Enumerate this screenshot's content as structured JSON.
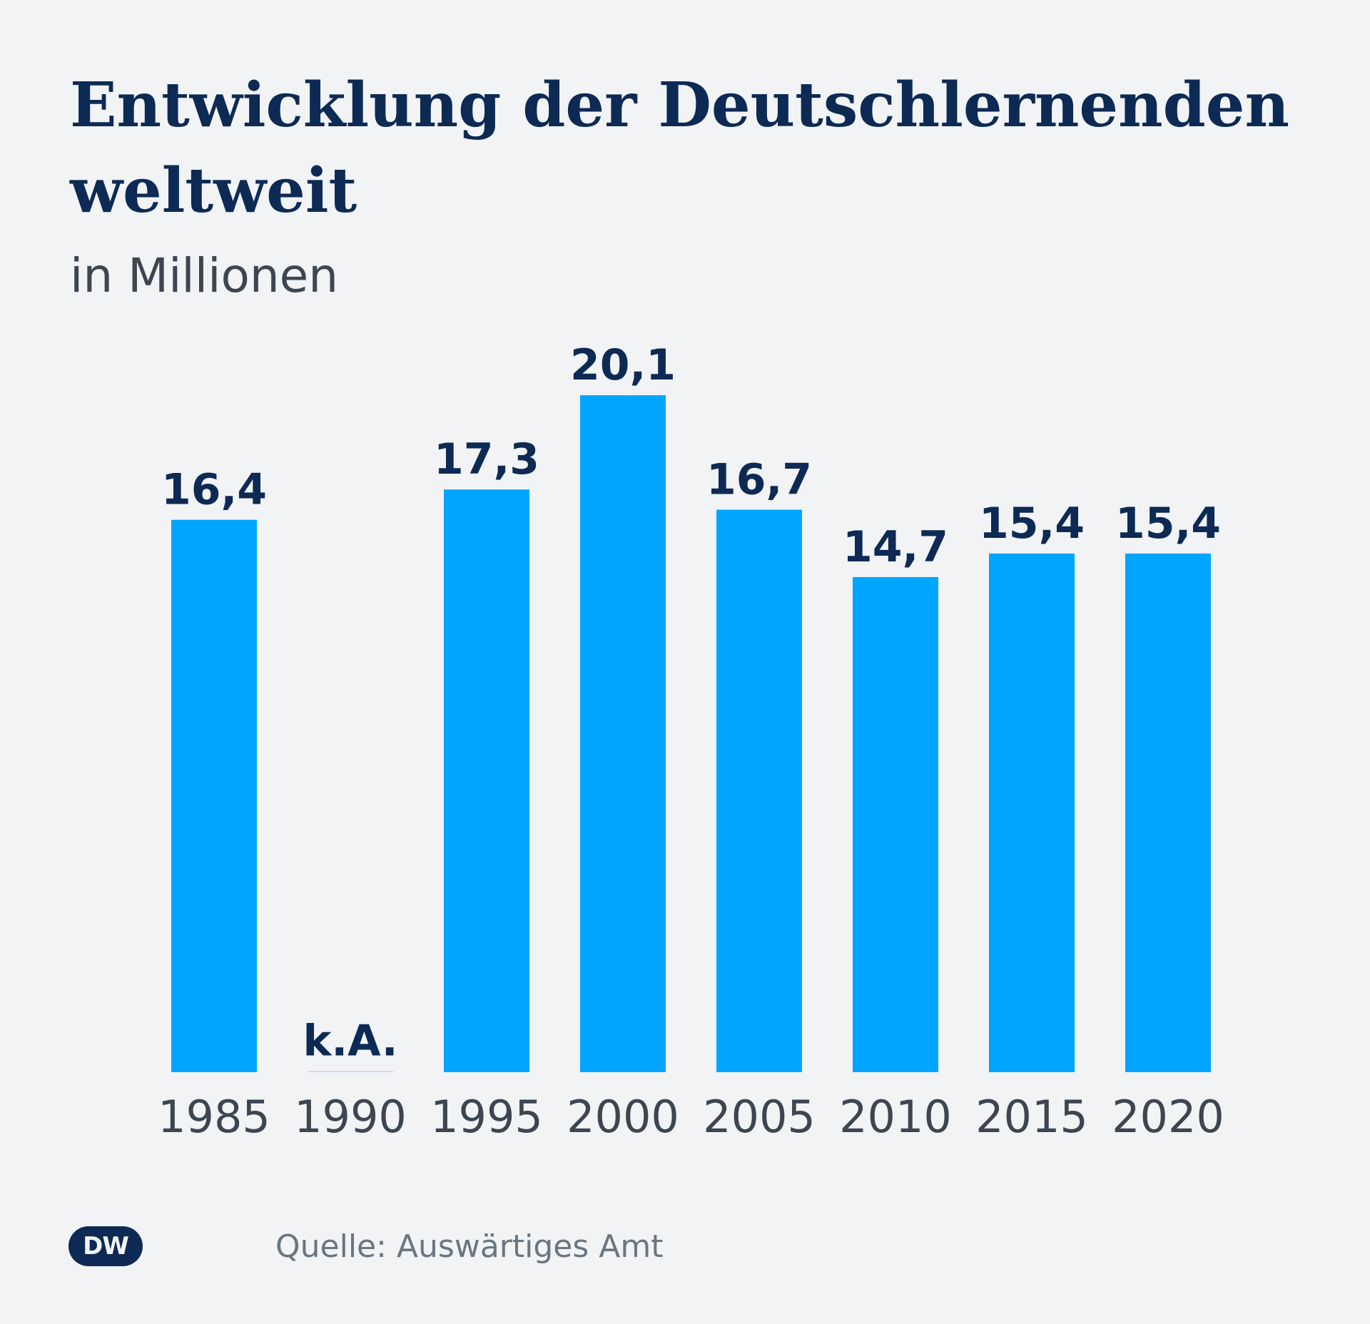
{
  "header": {
    "title": "Entwicklung der Deutschlernenden weltweit",
    "subtitle": "in Millionen"
  },
  "footer": {
    "logo_text": "DW",
    "source": "Quelle: Auswärtiges Amt"
  },
  "colors": {
    "bar": "#00a5ff",
    "missing_bar": "#b9d8f2",
    "value_label": "#0d2a54",
    "tick_label": "#3d4650",
    "background": "#f1f3f5"
  },
  "chart_data": {
    "type": "bar",
    "title": "Entwicklung der Deutschlernenden weltweit",
    "subtitle": "in Millionen",
    "xlabel": "",
    "ylabel": "",
    "categories": [
      "1985",
      "1990",
      "1995",
      "2000",
      "2005",
      "2010",
      "2015",
      "2020"
    ],
    "values": [
      16.4,
      null,
      17.3,
      20.1,
      16.7,
      14.7,
      15.4,
      15.4
    ],
    "value_labels": [
      "16,4",
      "k.A.",
      "17,3",
      "20,1",
      "16,7",
      "14,7",
      "15,4",
      "15,4"
    ],
    "ylim": [
      0,
      20.1
    ],
    "grid": false,
    "legend": "none"
  }
}
